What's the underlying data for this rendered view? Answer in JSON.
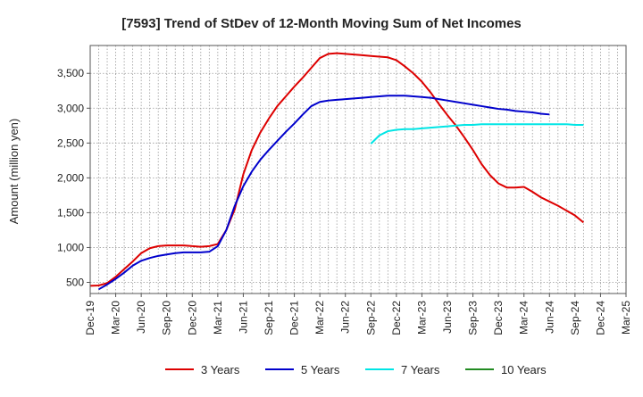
{
  "chart_data": {
    "type": "line",
    "title": "[7593]  Trend of StDev of 12-Month Moving Sum of Net Incomes",
    "ylabel": "Amount (million yen)",
    "xlabel": "",
    "x_ticks": [
      "Dec-19",
      "Mar-20",
      "Jun-20",
      "Sep-20",
      "Dec-20",
      "Mar-21",
      "Jun-21",
      "Sep-21",
      "Dec-21",
      "Mar-22",
      "Jun-22",
      "Sep-22",
      "Dec-22",
      "Mar-23",
      "Jun-23",
      "Sep-23",
      "Dec-23",
      "Mar-24",
      "Jun-24",
      "Sep-24",
      "Dec-24",
      "Mar-25"
    ],
    "y_ticks": [
      500,
      1000,
      1500,
      2000,
      2500,
      3000,
      3500
    ],
    "y_tick_labels": [
      "500",
      "1,000",
      "1,500",
      "2,000",
      "2,500",
      "3,000",
      "3,500"
    ],
    "ylim": [
      340,
      3900
    ],
    "grid": true,
    "legend_position": "bottom",
    "series": [
      {
        "name": "3 Years",
        "color": "#dd0000",
        "start_index": 0,
        "values": [
          450,
          455,
          490,
          580,
          690,
          800,
          920,
          990,
          1020,
          1030,
          1030,
          1030,
          1020,
          1010,
          1020,
          1050,
          1250,
          1550,
          2050,
          2400,
          2650,
          2850,
          3030,
          3170,
          3310,
          3440,
          3580,
          3720,
          3780,
          3790,
          3780,
          3770,
          3760,
          3750,
          3740,
          3730,
          3690,
          3600,
          3500,
          3380,
          3230,
          3060,
          2900,
          2750,
          2580,
          2400,
          2200,
          2040,
          1920,
          1860,
          1860,
          1870,
          1800,
          1720,
          1660,
          1600,
          1530,
          1460,
          1360
        ]
      },
      {
        "name": "5 Years",
        "color": "#0000cc",
        "start_index": 1,
        "values": [
          400,
          470,
          550,
          640,
          740,
          810,
          850,
          880,
          900,
          920,
          930,
          930,
          930,
          940,
          1020,
          1250,
          1600,
          1880,
          2090,
          2260,
          2400,
          2530,
          2660,
          2780,
          2910,
          3030,
          3090,
          3110,
          3120,
          3130,
          3140,
          3150,
          3160,
          3170,
          3180,
          3180,
          3180,
          3170,
          3160,
          3150,
          3130,
          3110,
          3090,
          3070,
          3050,
          3030,
          3010,
          2990,
          2980,
          2960,
          2950,
          2940,
          2920,
          2910
        ]
      },
      {
        "name": "7 Years",
        "color": "#00e5e5",
        "start_index": 33,
        "values": [
          2490,
          2610,
          2670,
          2690,
          2700,
          2700,
          2710,
          2720,
          2730,
          2740,
          2750,
          2760,
          2760,
          2770,
          2770,
          2770,
          2770,
          2770,
          2770,
          2770,
          2770,
          2770,
          2770,
          2770,
          2760,
          2760
        ]
      },
      {
        "name": "10 Years",
        "color": "#228b22",
        "start_index": 0,
        "values": []
      }
    ]
  }
}
